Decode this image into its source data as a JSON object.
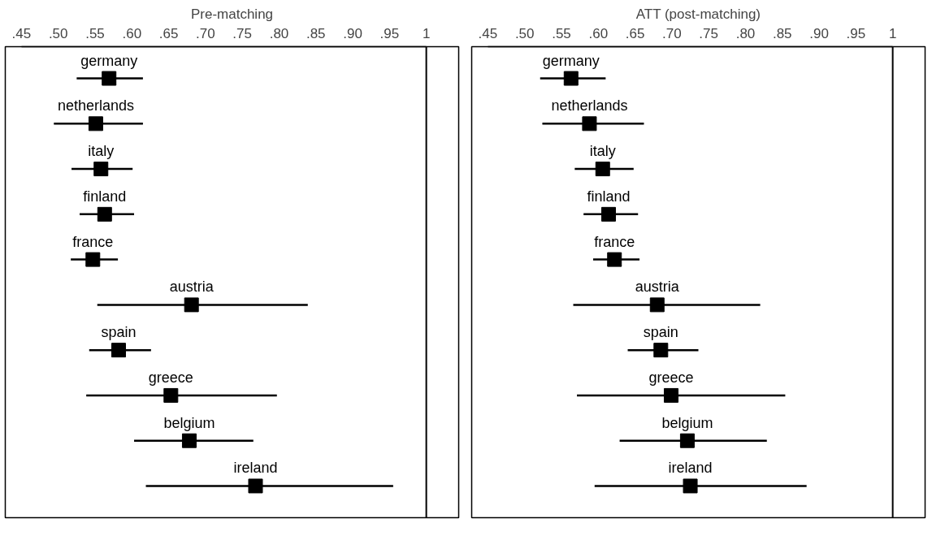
{
  "chart_data": [
    {
      "type": "scatter",
      "title": "Pre-matching",
      "orientation": "horizontal",
      "marker": "square",
      "grid": false,
      "tick_labels": "x",
      "categories": [
        null,
        null,
        null,
        null,
        null,
        null,
        null,
        null,
        null,
        null
      ],
      "series": [
        {
          "name": "germany",
          "color": "#000000",
          "values": [
            0.569,
            null,
            null,
            null,
            null,
            null,
            null,
            null,
            null,
            null
          ],
          "errors": [
            [
              0.525,
              0.615
            ],
            null,
            null,
            null,
            null,
            null,
            null,
            null,
            null,
            null
          ]
        },
        {
          "name": "netherlands",
          "color": "#000000",
          "values": [
            null,
            0.551,
            null,
            null,
            null,
            null,
            null,
            null,
            null,
            null
          ],
          "errors": [
            null,
            [
              0.494,
              0.615
            ],
            null,
            null,
            null,
            null,
            null,
            null,
            null,
            null
          ]
        },
        {
          "name": "italy",
          "color": "#000000",
          "values": [
            null,
            null,
            0.558,
            null,
            null,
            null,
            null,
            null,
            null,
            null
          ],
          "errors": [
            null,
            null,
            [
              0.518,
              0.601
            ],
            null,
            null,
            null,
            null,
            null,
            null,
            null
          ]
        },
        {
          "name": "finland",
          "color": "#000000",
          "values": [
            null,
            null,
            null,
            0.563,
            null,
            null,
            null,
            null,
            null,
            null
          ],
          "errors": [
            null,
            null,
            null,
            [
              0.529,
              0.603
            ],
            null,
            null,
            null,
            null,
            null,
            null
          ]
        },
        {
          "name": "france",
          "color": "#000000",
          "values": [
            null,
            null,
            null,
            null,
            0.547,
            null,
            null,
            null,
            null,
            null
          ],
          "errors": [
            null,
            null,
            null,
            null,
            [
              0.517,
              0.581
            ],
            null,
            null,
            null,
            null,
            null
          ]
        },
        {
          "name": "austria",
          "color": "#000000",
          "values": [
            null,
            null,
            null,
            null,
            null,
            0.681,
            null,
            null,
            null,
            null
          ],
          "errors": [
            null,
            null,
            null,
            null,
            null,
            [
              0.553,
              0.839
            ],
            null,
            null,
            null,
            null
          ]
        },
        {
          "name": "spain",
          "color": "#000000",
          "values": [
            null,
            null,
            null,
            null,
            null,
            null,
            0.582,
            null,
            null,
            null
          ],
          "errors": [
            null,
            null,
            null,
            null,
            null,
            null,
            [
              0.542,
              0.626
            ],
            null,
            null,
            null
          ]
        },
        {
          "name": "greece",
          "color": "#000000",
          "values": [
            null,
            null,
            null,
            null,
            null,
            null,
            null,
            0.653,
            null,
            null
          ],
          "errors": [
            null,
            null,
            null,
            null,
            null,
            null,
            null,
            [
              0.538,
              0.797
            ],
            null,
            null
          ]
        },
        {
          "name": "belgium",
          "color": "#000000",
          "values": [
            null,
            null,
            null,
            null,
            null,
            null,
            null,
            null,
            0.678,
            null
          ],
          "errors": [
            null,
            null,
            null,
            null,
            null,
            null,
            null,
            null,
            [
              0.603,
              0.765
            ],
            null
          ]
        },
        {
          "name": "ireland",
          "color": "#000000",
          "values": [
            null,
            null,
            null,
            null,
            null,
            null,
            null,
            null,
            null,
            0.768
          ],
          "errors": [
            null,
            null,
            null,
            null,
            null,
            null,
            null,
            null,
            null,
            [
              0.619,
              0.955
            ]
          ]
        }
      ],
      "xlim": [
        0.45,
        1
      ],
      "xticks": [
        {
          "value": 0.45,
          "label": ".45"
        },
        {
          "value": 0.5,
          "label": ".50"
        },
        {
          "value": 0.55,
          "label": ".55"
        },
        {
          "value": 0.6,
          "label": ".60"
        },
        {
          "value": 0.65,
          "label": ".65"
        },
        {
          "value": 0.7,
          "label": ".70"
        },
        {
          "value": 0.75,
          "label": ".75"
        },
        {
          "value": 0.8,
          "label": ".80"
        },
        {
          "value": 0.85,
          "label": ".85"
        },
        {
          "value": 0.9,
          "label": ".90"
        },
        {
          "value": 0.95,
          "label": ".95"
        },
        1
      ],
      "ref_lines": [
        {
          "axis": "x",
          "value": 1,
          "color": "#000000"
        }
      ]
    },
    {
      "type": "scatter",
      "title": "ATT (post-matching)",
      "orientation": "horizontal",
      "marker": "square",
      "grid": false,
      "tick_labels": "x",
      "categories": [
        null,
        null,
        null,
        null,
        null,
        null,
        null,
        null,
        null,
        null
      ],
      "series": [
        {
          "name": "germany",
          "color": "#000000",
          "values": [
            0.563,
            null,
            null,
            null,
            null,
            null,
            null,
            null,
            null,
            null
          ],
          "errors": [
            [
              0.521,
              0.61
            ],
            null,
            null,
            null,
            null,
            null,
            null,
            null,
            null,
            null
          ]
        },
        {
          "name": "netherlands",
          "color": "#000000",
          "values": [
            null,
            0.588,
            null,
            null,
            null,
            null,
            null,
            null,
            null,
            null
          ],
          "errors": [
            null,
            [
              0.524,
              0.662
            ],
            null,
            null,
            null,
            null,
            null,
            null,
            null,
            null
          ]
        },
        {
          "name": "italy",
          "color": "#000000",
          "values": [
            null,
            null,
            0.606,
            null,
            null,
            null,
            null,
            null,
            null,
            null
          ],
          "errors": [
            null,
            null,
            [
              0.568,
              0.648
            ],
            null,
            null,
            null,
            null,
            null,
            null,
            null
          ]
        },
        {
          "name": "finland",
          "color": "#000000",
          "values": [
            null,
            null,
            null,
            0.614,
            null,
            null,
            null,
            null,
            null,
            null
          ],
          "errors": [
            null,
            null,
            null,
            [
              0.58,
              0.654
            ],
            null,
            null,
            null,
            null,
            null,
            null
          ]
        },
        {
          "name": "france",
          "color": "#000000",
          "values": [
            null,
            null,
            null,
            null,
            0.622,
            null,
            null,
            null,
            null,
            null
          ],
          "errors": [
            null,
            null,
            null,
            null,
            [
              0.593,
              0.656
            ],
            null,
            null,
            null,
            null,
            null
          ]
        },
        {
          "name": "austria",
          "color": "#000000",
          "values": [
            null,
            null,
            null,
            null,
            null,
            0.68,
            null,
            null,
            null,
            null
          ],
          "errors": [
            null,
            null,
            null,
            null,
            null,
            [
              0.566,
              0.82
            ],
            null,
            null,
            null,
            null
          ]
        },
        {
          "name": "spain",
          "color": "#000000",
          "values": [
            null,
            null,
            null,
            null,
            null,
            null,
            0.685,
            null,
            null,
            null
          ],
          "errors": [
            null,
            null,
            null,
            null,
            null,
            null,
            [
              0.64,
              0.736
            ],
            null,
            null,
            null
          ]
        },
        {
          "name": "greece",
          "color": "#000000",
          "values": [
            null,
            null,
            null,
            null,
            null,
            null,
            null,
            0.699,
            null,
            null
          ],
          "errors": [
            null,
            null,
            null,
            null,
            null,
            null,
            null,
            [
              0.571,
              0.854
            ],
            null,
            null
          ]
        },
        {
          "name": "belgium",
          "color": "#000000",
          "values": [
            null,
            null,
            null,
            null,
            null,
            null,
            null,
            null,
            0.721,
            null
          ],
          "errors": [
            null,
            null,
            null,
            null,
            null,
            null,
            null,
            null,
            [
              0.629,
              0.829
            ],
            null
          ]
        },
        {
          "name": "ireland",
          "color": "#000000",
          "values": [
            null,
            null,
            null,
            null,
            null,
            null,
            null,
            null,
            null,
            0.725
          ],
          "errors": [
            null,
            null,
            null,
            null,
            null,
            null,
            null,
            null,
            null,
            [
              0.595,
              0.883
            ]
          ]
        }
      ],
      "xlim": [
        0.45,
        1
      ],
      "xticks": [
        {
          "value": 0.45,
          "label": ".45"
        },
        {
          "value": 0.5,
          "label": ".50"
        },
        {
          "value": 0.55,
          "label": ".55"
        },
        {
          "value": 0.6,
          "label": ".60"
        },
        {
          "value": 0.65,
          "label": ".65"
        },
        {
          "value": 0.7,
          "label": ".70"
        },
        {
          "value": 0.75,
          "label": ".75"
        },
        {
          "value": 0.8,
          "label": ".80"
        },
        {
          "value": 0.85,
          "label": ".85"
        },
        {
          "value": 0.9,
          "label": ".90"
        },
        {
          "value": 0.95,
          "label": ".95"
        },
        1
      ],
      "ref_lines": [
        {
          "axis": "x",
          "value": 1,
          "color": "#000000"
        }
      ]
    }
  ]
}
